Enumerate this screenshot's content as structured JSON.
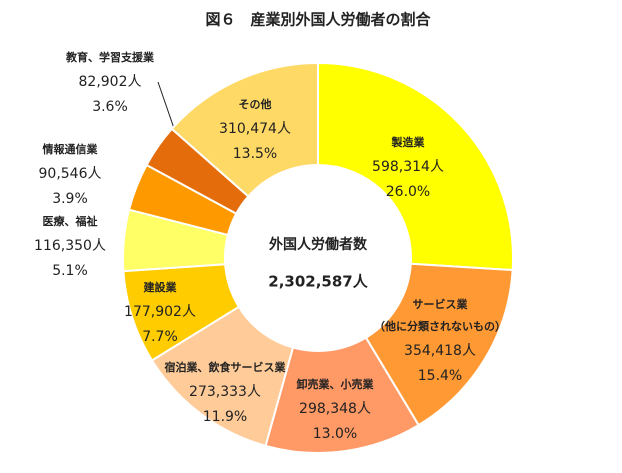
{
  "chart_data": {
    "type": "donut",
    "title": "図６　産業別外国人労働者の割合",
    "center_title": "外国人労働者数",
    "total": 2302587,
    "total_label": "2,302,587人",
    "categories": [
      "製造業",
      "サービス業\n（他に分類されないもの）",
      "卸売業、小売業",
      "宿泊業、飲食サービス業",
      "建設業",
      "医療、福祉",
      "情報通信業",
      "教育、学習支援業",
      "その他"
    ],
    "values": [
      598314,
      354418,
      298348,
      273333,
      177902,
      116350,
      90546,
      82902,
      310474
    ],
    "value_labels": [
      "598,314人",
      "354,418人",
      "298,348人",
      "273,333人",
      "177,902人",
      "116,350人",
      "90,546人",
      "82,902人",
      "310,474人"
    ],
    "percentages": [
      26.0,
      15.4,
      13.0,
      11.9,
      7.7,
      5.1,
      3.9,
      3.6,
      13.5
    ],
    "percentage_labels": [
      "26.0%",
      "15.4%",
      "13.0%",
      "11.9%",
      "7.7%",
      "5.1%",
      "3.9%",
      "3.6%",
      "13.5%"
    ],
    "colors": [
      "#ffff00",
      "#ff9933",
      "#ff9966",
      "#ffcc99",
      "#ffcc00",
      "#ffff66",
      "#ff9900",
      "#e46c0a",
      "#ffd966"
    ]
  }
}
